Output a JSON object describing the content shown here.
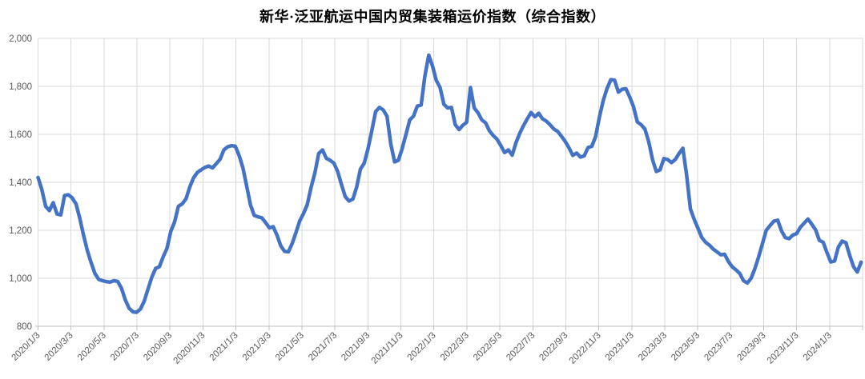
{
  "chart_data": {
    "type": "line",
    "title": "新华·泛亚航运中国内贸集装箱运价指数（综合指数）",
    "xlabel": "",
    "ylabel": "",
    "ylim": [
      800,
      2000
    ],
    "y_tick_values": [
      2000,
      1800,
      1600,
      1400,
      1200,
      1000,
      800
    ],
    "y_tick_labels": [
      "2,000",
      "1,800",
      "1,600",
      "1,400",
      "1,200",
      "1,000",
      "800"
    ],
    "x_tick_labels": [
      "2020/1/3",
      "2020/3/3",
      "2020/5/3",
      "2020/7/3",
      "2020/9/3",
      "2020/11/3",
      "2021/1/3",
      "2021/3/3",
      "2021/5/3",
      "2021/7/3",
      "2021/9/3",
      "2021/11/3",
      "2022/1/3",
      "2022/3/3",
      "2022/5/3",
      "2022/7/3",
      "2022/9/3",
      "2022/11/3",
      "2023/1/3",
      "2023/3/3",
      "2023/5/3",
      "2023/7/3",
      "2023/9/3",
      "2023/11/3",
      "2024/1/3"
    ],
    "grid": true,
    "legend": "none",
    "series": [
      {
        "name": "综合指数",
        "frequency": "weekly",
        "start": "2020/1/3",
        "end": "2024/3/1",
        "values": [
          1420,
          1370,
          1300,
          1282,
          1315,
          1268,
          1264,
          1345,
          1348,
          1335,
          1310,
          1250,
          1180,
          1115,
          1065,
          1020,
          995,
          990,
          986,
          984,
          990,
          987,
          958,
          910,
          875,
          860,
          858,
          872,
          905,
          955,
          1005,
          1041,
          1048,
          1090,
          1125,
          1195,
          1235,
          1300,
          1310,
          1331,
          1380,
          1419,
          1441,
          1452,
          1462,
          1468,
          1460,
          1478,
          1496,
          1535,
          1548,
          1553,
          1550,
          1512,
          1462,
          1384,
          1306,
          1262,
          1256,
          1252,
          1232,
          1210,
          1215,
          1180,
          1135,
          1112,
          1110,
          1145,
          1190,
          1240,
          1270,
          1308,
          1380,
          1440,
          1520,
          1535,
          1500,
          1492,
          1480,
          1445,
          1390,
          1340,
          1322,
          1330,
          1380,
          1455,
          1480,
          1540,
          1615,
          1695,
          1712,
          1702,
          1675,
          1560,
          1485,
          1492,
          1540,
          1600,
          1660,
          1676,
          1718,
          1722,
          1843,
          1930,
          1885,
          1825,
          1795,
          1725,
          1710,
          1712,
          1640,
          1620,
          1638,
          1650,
          1795,
          1710,
          1690,
          1660,
          1648,
          1615,
          1595,
          1580,
          1553,
          1524,
          1535,
          1513,
          1565,
          1604,
          1637,
          1665,
          1691,
          1673,
          1688,
          1665,
          1655,
          1640,
          1622,
          1612,
          1592,
          1570,
          1543,
          1512,
          1522,
          1505,
          1510,
          1545,
          1550,
          1590,
          1672,
          1740,
          1790,
          1828,
          1826,
          1776,
          1788,
          1790,
          1755,
          1715,
          1652,
          1640,
          1622,
          1570,
          1495,
          1445,
          1452,
          1499,
          1495,
          1482,
          1495,
          1520,
          1542,
          1430,
          1289,
          1245,
          1208,
          1170,
          1150,
          1138,
          1122,
          1110,
          1098,
          1100,
          1070,
          1048,
          1035,
          1020,
          990,
          980,
          1000,
          1040,
          1090,
          1145,
          1200,
          1220,
          1238,
          1242,
          1198,
          1170,
          1165,
          1180,
          1186,
          1213,
          1230,
          1247,
          1225,
          1202,
          1158,
          1150,
          1107,
          1068,
          1072,
          1130,
          1155,
          1148,
          1095,
          1048,
          1026,
          1067
        ]
      }
    ],
    "colors": {
      "line": "#4472C4",
      "gridline": "#D9D9D9",
      "axis": "#BFBFBF",
      "tick_label": "#595959",
      "title": "#000000",
      "background": "#FFFFFF"
    }
  }
}
